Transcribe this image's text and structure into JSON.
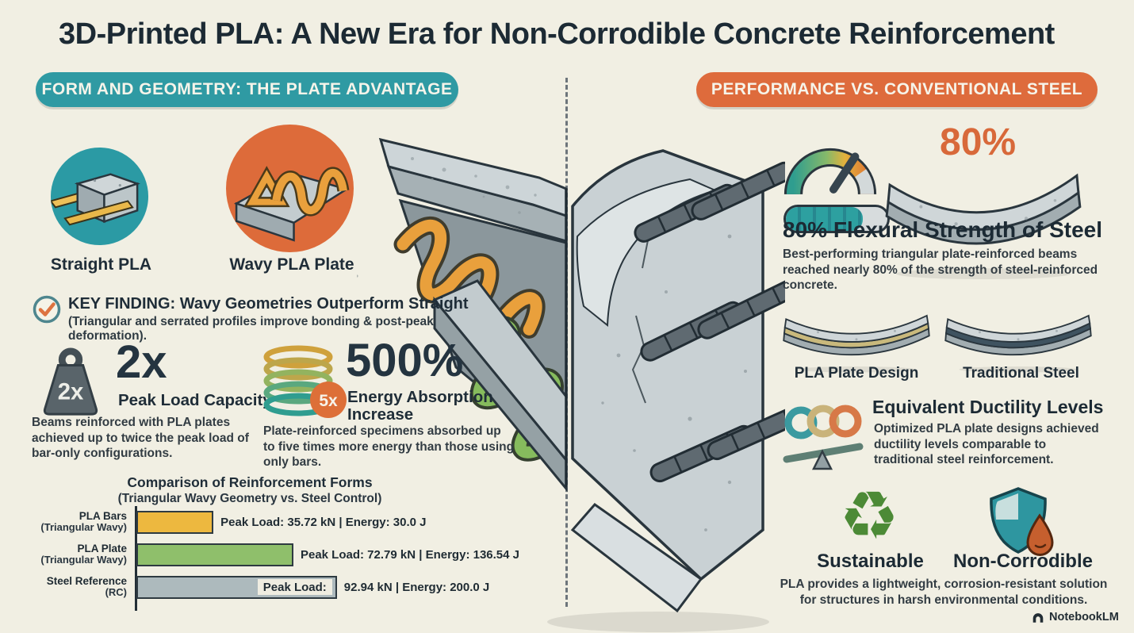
{
  "title": "3D-Printed PLA: A New Era for Non-Corrodible Concrete Reinforcement",
  "colors": {
    "background": "#f1efe3",
    "teal_accent": "#2f9aa3",
    "orange_accent": "#de6b3c",
    "pla_yellow": "#edb83f",
    "pla_green": "#8fbf6b",
    "steel_gray": "#adbabd",
    "heading": "#1c2a34"
  },
  "left_panel": {
    "banner": "FORM AND GEOMETRY: THE PLATE ADVANTAGE",
    "items": [
      {
        "label": "Straight PLA"
      },
      {
        "label": "Wavy PLA Plate"
      }
    ],
    "key_finding": {
      "title": "KEY FINDING: Wavy Geometries Outperform Straight",
      "subtitle": "(Triangular and serrated profiles improve bonding & post-peak deformation)."
    },
    "stats": [
      {
        "badge": "2x",
        "value": "2x",
        "label": "Peak Load Capacity",
        "description": "Beams reinforced with PLA plates achieved up to twice the peak load of bar-only configurations."
      },
      {
        "badge": "5x",
        "value": "500%",
        "label": "Energy Absorption Increase",
        "description": "Plate-reinforced specimens absorbed up to five times more energy than those using only bars."
      }
    ]
  },
  "chart_data": {
    "type": "bar",
    "orientation": "horizontal",
    "title": "Comparison of Reinforcement Forms",
    "subtitle": "(Triangular Wavy Geometry vs. Steel Control)",
    "legend_position": "none",
    "grid": false,
    "categories": [
      "PLA Bars (Triangular Wavy)",
      "PLA Plate (Triangular Wavy)",
      "Steel Reference (RC)"
    ],
    "series": [
      {
        "name": "Peak Load (kN)",
        "values": [
          35.72,
          72.79,
          92.94
        ]
      },
      {
        "name": "Energy (J)",
        "values": [
          30.0,
          136.54,
          200.0
        ]
      }
    ],
    "rows": [
      {
        "label_line1": "PLA Bars",
        "label_line2": "(Triangular Wavy)",
        "peak_load_kN": 35.72,
        "energy_J": 30.0,
        "value_label": "Peak Load: 35.72 kN | Energy: 30.0 J",
        "color": "#edb83f"
      },
      {
        "label_line1": "PLA Plate",
        "label_line2": "(Triangular Wavy)",
        "peak_load_kN": 72.79,
        "energy_J": 136.54,
        "value_label": "Peak Load: 72.79 kN | Energy: 136.54 J",
        "color": "#8fbf6b"
      },
      {
        "label_line1": "Steel Reference",
        "label_line2": "(RC)",
        "peak_load_kN": 92.94,
        "energy_J": 200.0,
        "value_label_inside": "Peak Load:",
        "value_label": "92.94 kN | Energy: 200.0 J",
        "color": "#adbabd"
      }
    ]
  },
  "right_panel": {
    "banner": "PERFORMANCE VS. CONVENTIONAL STEEL",
    "flexural": {
      "percent": "80%",
      "title": "80% Flexural Strength of Steel",
      "description": "Best-performing triangular plate-reinforced beams reached nearly 80% of the strength of steel-reinforced concrete."
    },
    "beam_comparison": [
      {
        "label": "PLA Plate Design"
      },
      {
        "label": "Traditional Steel"
      }
    ],
    "ductility": {
      "title": "Equivalent Ductility Levels",
      "description": "Optimized PLA plate designs achieved ductility levels comparable to traditional steel reinforcement."
    },
    "benefits": [
      {
        "label": "Sustainable",
        "icon_glyph": "♻"
      },
      {
        "label": "Non-Corrodible"
      }
    ],
    "benefits_note": "PLA provides a lightweight, corrosion-resistant solution for structures in harsh environmental conditions."
  },
  "footer": {
    "brand": "NotebookLM"
  }
}
